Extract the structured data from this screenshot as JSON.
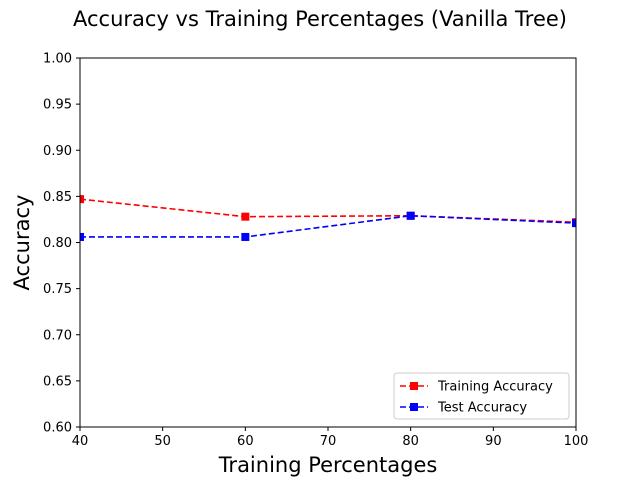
{
  "chart_data": {
    "type": "line",
    "title": "Accuracy vs Training Percentages (Vanilla Tree)",
    "xlabel": "Training Percentages",
    "ylabel": "Accuracy",
    "x": [
      40,
      60,
      80,
      100
    ],
    "xlim": [
      40,
      100
    ],
    "ylim": [
      0.6,
      1.0
    ],
    "xticks": [
      "40",
      "50",
      "60",
      "70",
      "80",
      "90",
      "100"
    ],
    "yticks": [
      "0.60",
      "0.65",
      "0.70",
      "0.75",
      "0.80",
      "0.85",
      "0.90",
      "0.95",
      "1.00"
    ],
    "grid": false,
    "legend_position": "lower-right",
    "series": [
      {
        "name": "Training Accuracy",
        "values": [
          0.847,
          0.828,
          0.829,
          0.822
        ],
        "color": "#ff0000",
        "linestyle": "dashed",
        "marker": "square"
      },
      {
        "name": "Test Accuracy",
        "values": [
          0.806,
          0.806,
          0.829,
          0.821
        ],
        "color": "#0000ff",
        "linestyle": "dashed",
        "marker": "square"
      }
    ]
  }
}
